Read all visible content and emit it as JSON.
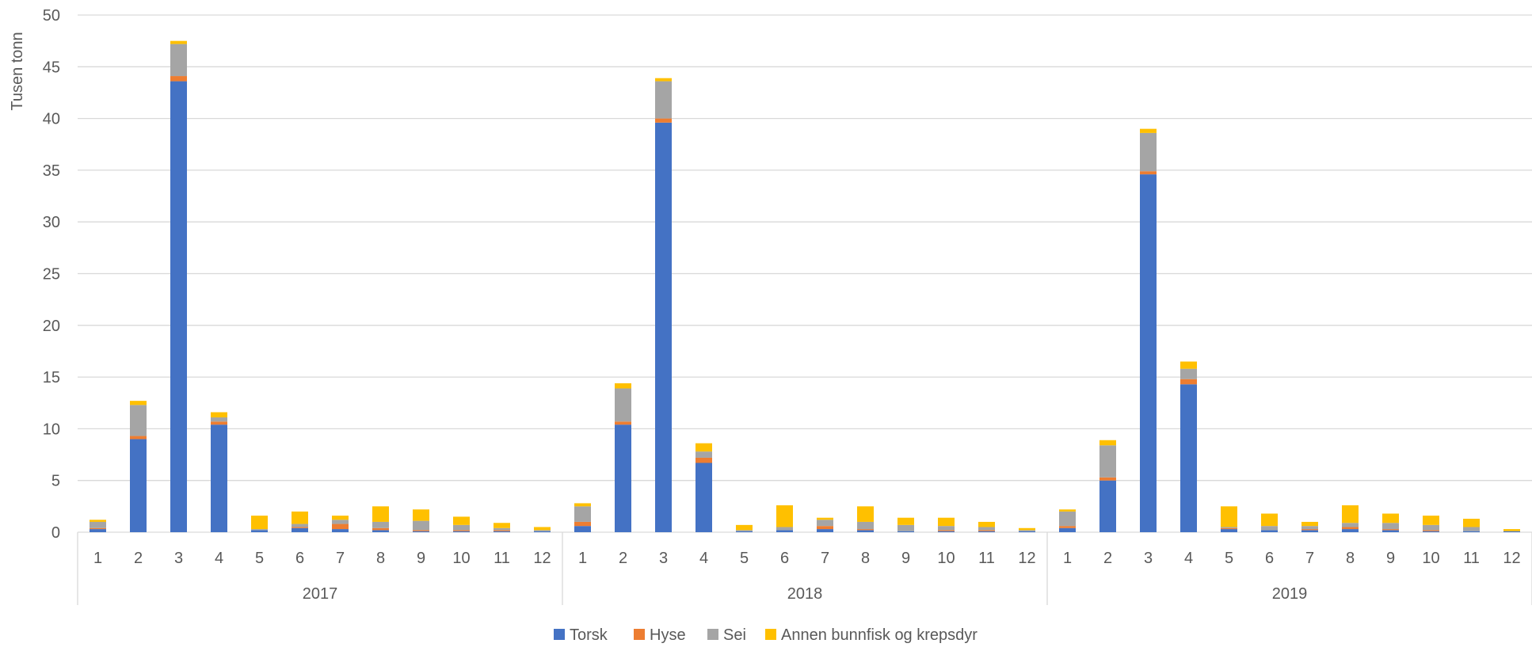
{
  "chart_data": {
    "type": "bar",
    "stacked": true,
    "title": "",
    "xlabel": "",
    "ylabel": "Tusen tonn",
    "ylim": [
      0,
      50
    ],
    "yticks": [
      "0",
      "5",
      "10",
      "15",
      "20",
      "25",
      "30",
      "35",
      "40",
      "45",
      "50"
    ],
    "grid": true,
    "legend_position": "bottom",
    "groups": [
      {
        "label": "2017",
        "months": [
          "1",
          "2",
          "3",
          "4",
          "5",
          "6",
          "7",
          "8",
          "9",
          "10",
          "11",
          "12"
        ]
      },
      {
        "label": "2018",
        "months": [
          "1",
          "2",
          "3",
          "4",
          "5",
          "6",
          "7",
          "8",
          "9",
          "10",
          "11",
          "12"
        ]
      },
      {
        "label": "2019",
        "months": [
          "1",
          "2",
          "3",
          "4",
          "5",
          "6",
          "7",
          "8",
          "9",
          "10",
          "11",
          "12"
        ]
      }
    ],
    "series": [
      {
        "name": "Torsk",
        "color": "#4472C4",
        "values": [
          0.3,
          9.0,
          43.6,
          10.4,
          0.2,
          0.4,
          0.3,
          0.2,
          0.1,
          0.1,
          0.1,
          0.1,
          0.6,
          10.4,
          39.6,
          6.7,
          0.1,
          0.2,
          0.3,
          0.2,
          0.1,
          0.1,
          0.1,
          0.1,
          0.4,
          5.0,
          34.6,
          14.3,
          0.3,
          0.2,
          0.2,
          0.3,
          0.2,
          0.1,
          0.1,
          0.1
        ]
      },
      {
        "name": "Hyse",
        "color": "#ED7D31",
        "values": [
          0.1,
          0.3,
          0.5,
          0.3,
          0.0,
          0.1,
          0.5,
          0.2,
          0.1,
          0.1,
          0.1,
          0.0,
          0.4,
          0.3,
          0.4,
          0.5,
          0.0,
          0.0,
          0.3,
          0.1,
          0.0,
          0.1,
          0.1,
          0.0,
          0.2,
          0.3,
          0.3,
          0.5,
          0.1,
          0.0,
          0.1,
          0.2,
          0.1,
          0.1,
          0.0,
          0.0
        ]
      },
      {
        "name": "Sei",
        "color": "#A5A5A5",
        "values": [
          0.6,
          3.0,
          3.1,
          0.4,
          0.1,
          0.3,
          0.4,
          0.6,
          0.9,
          0.5,
          0.2,
          0.1,
          1.5,
          3.2,
          3.6,
          0.6,
          0.1,
          0.3,
          0.6,
          0.7,
          0.6,
          0.4,
          0.3,
          0.1,
          1.4,
          3.1,
          3.7,
          1.0,
          0.1,
          0.4,
          0.3,
          0.4,
          0.6,
          0.5,
          0.4,
          0.0
        ]
      },
      {
        "name": "Annen bunnfisk og krepsdyr",
        "color": "#FFC000",
        "values": [
          0.2,
          0.4,
          0.3,
          0.5,
          1.3,
          1.2,
          0.4,
          1.5,
          1.1,
          0.8,
          0.5,
          0.3,
          0.3,
          0.5,
          0.3,
          0.8,
          0.5,
          2.1,
          0.2,
          1.5,
          0.7,
          0.8,
          0.5,
          0.2,
          0.2,
          0.5,
          0.4,
          0.7,
          2.0,
          1.2,
          0.4,
          1.7,
          0.9,
          0.9,
          0.8,
          0.2
        ]
      }
    ]
  }
}
